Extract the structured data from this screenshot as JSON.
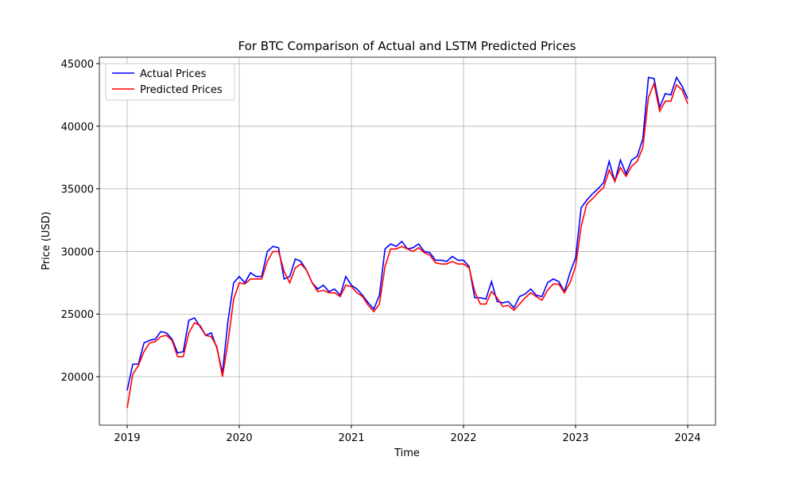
{
  "chart_data": {
    "type": "line",
    "title": "For BTC Comparison of Actual and LSTM Predicted Prices",
    "xlabel": "Time",
    "ylabel": "Price (USD)",
    "x": [
      2019.0,
      2019.05,
      2019.1,
      2019.15,
      2019.2,
      2019.25,
      2019.3,
      2019.35,
      2019.4,
      2019.45,
      2019.5,
      2019.55,
      2019.6,
      2019.65,
      2019.7,
      2019.75,
      2019.8,
      2019.85,
      2019.9,
      2019.95,
      2020.0,
      2020.05,
      2020.1,
      2020.15,
      2020.2,
      2020.25,
      2020.3,
      2020.35,
      2020.4,
      2020.45,
      2020.5,
      2020.55,
      2020.6,
      2020.65,
      2020.7,
      2020.75,
      2020.8,
      2020.85,
      2020.9,
      2020.95,
      2021.0,
      2021.05,
      2021.1,
      2021.15,
      2021.2,
      2021.25,
      2021.3,
      2021.35,
      2021.4,
      2021.45,
      2021.5,
      2021.55,
      2021.6,
      2021.65,
      2021.7,
      2021.75,
      2021.8,
      2021.85,
      2021.9,
      2021.95,
      2022.0,
      2022.05,
      2022.1,
      2022.15,
      2022.2,
      2022.25,
      2022.3,
      2022.35,
      2022.4,
      2022.45,
      2022.5,
      2022.55,
      2022.6,
      2022.65,
      2022.7,
      2022.75,
      2022.8,
      2022.85,
      2022.9,
      2022.95,
      2023.0,
      2023.05,
      2023.1,
      2023.15,
      2023.2,
      2023.25,
      2023.3,
      2023.35,
      2023.4,
      2023.45,
      2023.5,
      2023.55,
      2023.6,
      2023.65,
      2023.7,
      2023.75,
      2023.8,
      2023.85,
      2023.9,
      2023.95,
      2024.0
    ],
    "series": [
      {
        "name": "Actual Prices",
        "color": "#0000ff",
        "values": [
          18900,
          21000,
          21000,
          22700,
          22900,
          23000,
          23600,
          23500,
          23000,
          21900,
          22000,
          24500,
          24700,
          24000,
          23300,
          23500,
          22300,
          20300,
          24500,
          27500,
          28000,
          27500,
          28300,
          28000,
          28000,
          30000,
          30400,
          30300,
          27800,
          28000,
          29400,
          29200,
          28500,
          27500,
          27000,
          27300,
          26800,
          27000,
          26500,
          28000,
          27300,
          27000,
          26500,
          25900,
          25400,
          26500,
          30200,
          30600,
          30400,
          30800,
          30200,
          30300,
          30600,
          30000,
          29900,
          29300,
          29300,
          29200,
          29600,
          29300,
          29300,
          28800,
          26300,
          26300,
          26200,
          27600,
          26000,
          25900,
          26000,
          25500,
          26400,
          26600,
          27000,
          26500,
          26400,
          27500,
          27800,
          27600,
          26800,
          28300,
          29500,
          33500,
          34100,
          34600,
          35000,
          35500,
          37200,
          35600,
          37300,
          36200,
          37300,
          37600,
          39000,
          43900,
          43800,
          41500,
          42600,
          42500,
          43900,
          43200,
          42200
        ]
      },
      {
        "name": "Predicted Prices",
        "color": "#ff0000",
        "values": [
          17500,
          20200,
          20900,
          22000,
          22700,
          22800,
          23200,
          23300,
          22900,
          21600,
          21600,
          23500,
          24300,
          24100,
          23300,
          23200,
          22400,
          20000,
          22800,
          26200,
          27500,
          27400,
          27800,
          27800,
          27800,
          29200,
          30000,
          30000,
          28400,
          27500,
          28700,
          29000,
          28500,
          27500,
          26800,
          26900,
          26700,
          26700,
          26400,
          27300,
          27200,
          26700,
          26400,
          25700,
          25200,
          25800,
          28800,
          30200,
          30200,
          30400,
          30200,
          30000,
          30300,
          29900,
          29700,
          29100,
          29000,
          29000,
          29200,
          29000,
          29000,
          28700,
          26800,
          25800,
          25800,
          26800,
          26300,
          25600,
          25700,
          25300,
          25800,
          26300,
          26700,
          26400,
          26100,
          26900,
          27400,
          27400,
          26700,
          27500,
          28800,
          32000,
          33800,
          34200,
          34700,
          35100,
          36500,
          35600,
          36700,
          36000,
          36800,
          37200,
          38300,
          42300,
          43400,
          41200,
          42000,
          42000,
          43300,
          42900,
          41800
        ]
      }
    ],
    "xlim": [
      2018.752,
      2024.248
    ],
    "xticks": [
      2019,
      2020,
      2021,
      2022,
      2023,
      2024
    ],
    "ylim": [
      16130,
      45510
    ],
    "yticks": [
      20000,
      25000,
      30000,
      35000,
      40000,
      45000
    ],
    "grid": true,
    "legend": "upper left"
  }
}
